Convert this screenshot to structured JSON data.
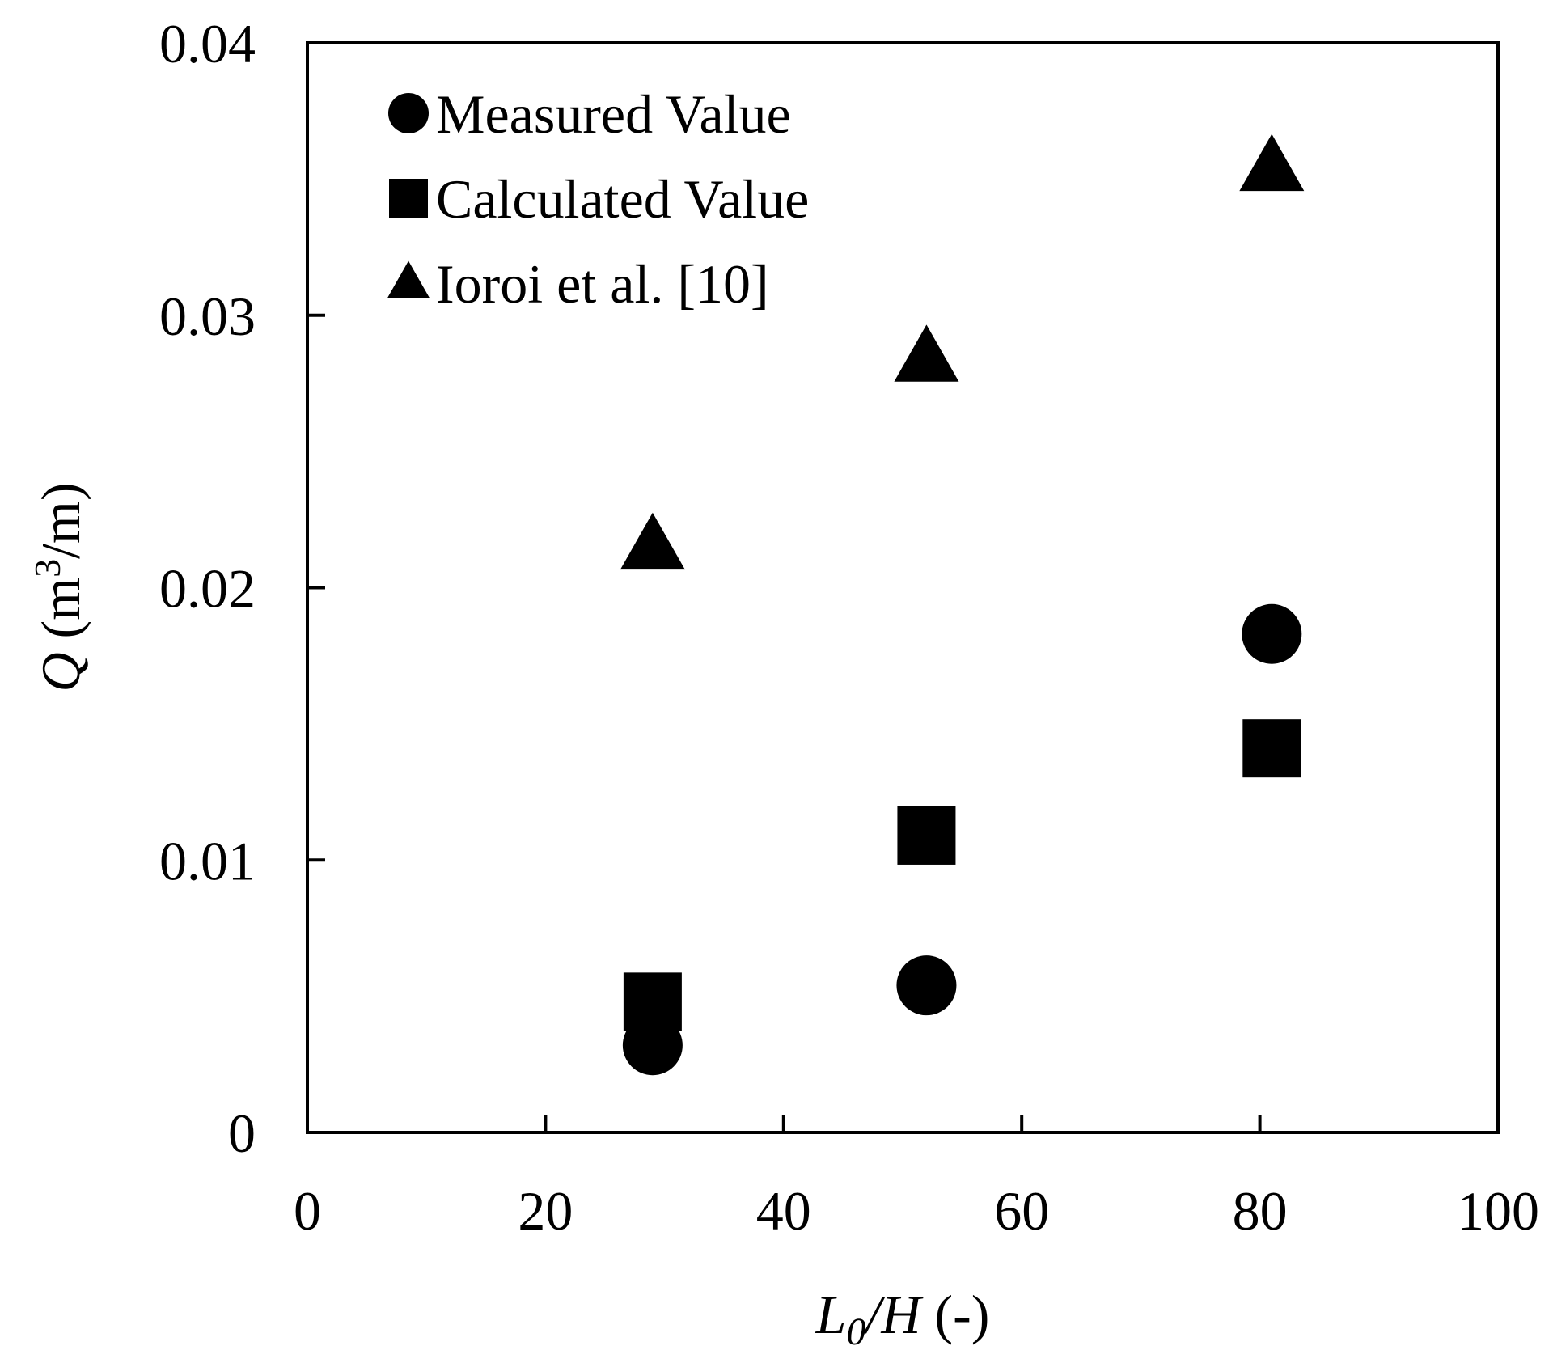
{
  "chart_data": {
    "type": "scatter",
    "xlabel_main": "L",
    "xlabel_sub": "0",
    "xlabel_rest": "/H",
    "xlabel_unit": " (-)",
    "ylabel_var": "Q",
    "ylabel_unit_pre": " (m",
    "ylabel_sup": "3",
    "ylabel_unit_post": "/m)",
    "xlim": [
      0,
      100
    ],
    "ylim": [
      0,
      0.04
    ],
    "x_ticks": [
      "0",
      "20",
      "40",
      "60",
      "80",
      "100"
    ],
    "y_ticks": [
      "0",
      "0.01",
      "0.02",
      "0.03",
      "0.04"
    ],
    "x_tick_values": [
      0,
      20,
      40,
      60,
      80,
      100
    ],
    "y_tick_values": [
      0,
      0.01,
      0.02,
      0.03,
      0.04
    ],
    "grid": false,
    "legend_position": "top-left",
    "series": [
      {
        "name": "Measured Value",
        "marker": "circle",
        "color": "#000000",
        "points": [
          [
            29,
            0.0032
          ],
          [
            52,
            0.0054
          ],
          [
            81,
            0.0183
          ]
        ]
      },
      {
        "name": "Calculated Value",
        "marker": "square",
        "color": "#000000",
        "points": [
          [
            29,
            0.0048
          ],
          [
            52,
            0.0109
          ],
          [
            81,
            0.0141
          ]
        ]
      },
      {
        "name": "Ioroi et al. [10]",
        "marker": "triangle",
        "color": "#000000",
        "points": [
          [
            29,
            0.0215
          ],
          [
            52,
            0.0284
          ],
          [
            81,
            0.0354
          ]
        ]
      }
    ]
  }
}
